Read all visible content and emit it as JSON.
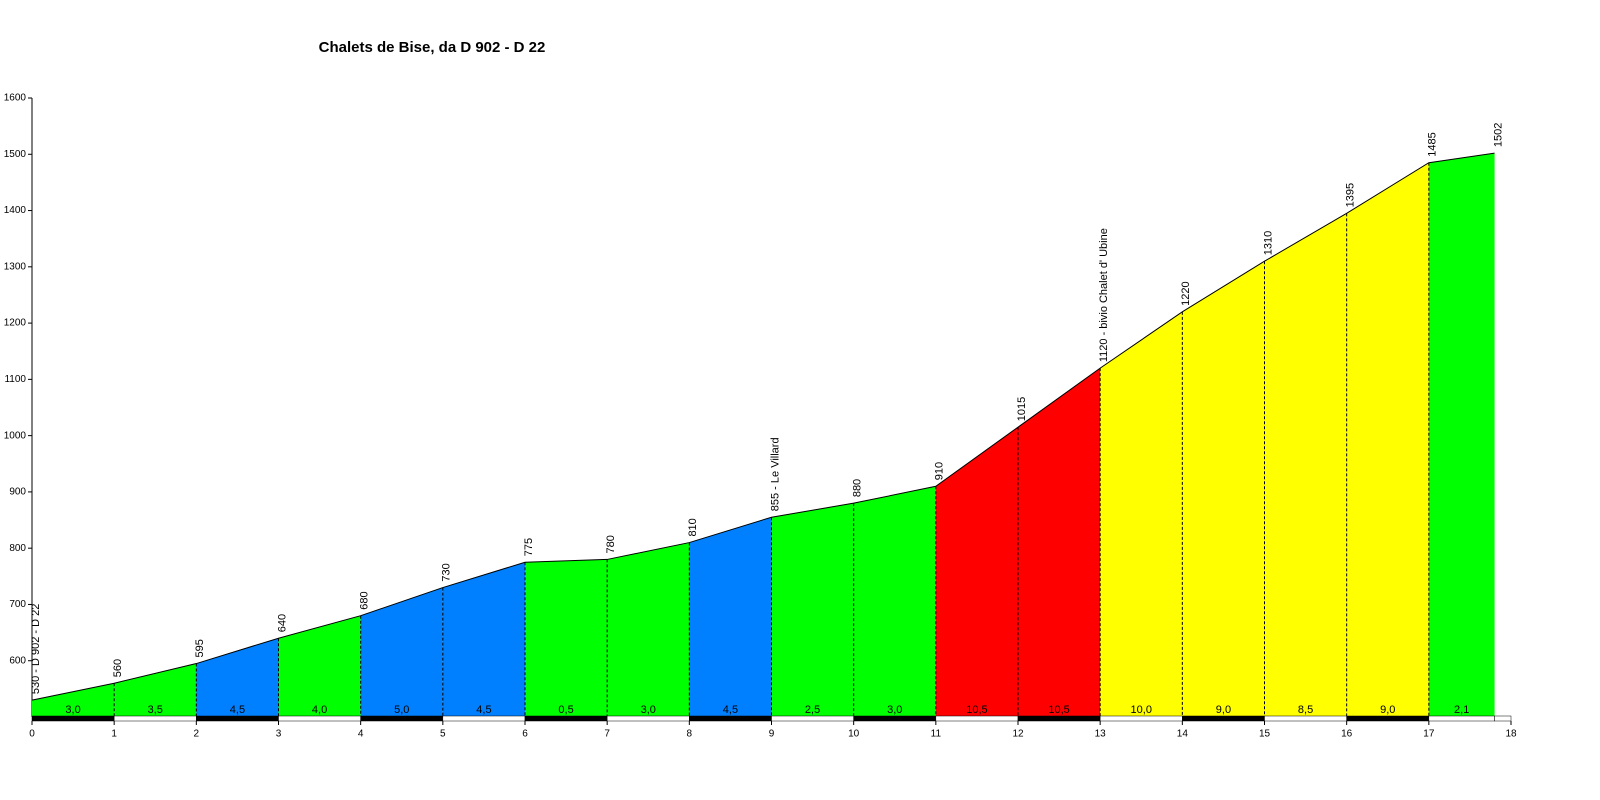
{
  "chart_data": {
    "type": "elevation-profile",
    "title": "Chalets de Bise, da D 902 - D 22",
    "x": [
      0,
      1,
      2,
      3,
      4,
      5,
      6,
      7,
      8,
      9,
      10,
      11,
      12,
      13,
      14,
      15,
      16,
      17,
      17.8
    ],
    "values": [
      530,
      560,
      595,
      640,
      680,
      730,
      775,
      780,
      810,
      855,
      880,
      910,
      1015,
      1120,
      1220,
      1310,
      1395,
      1485,
      1502
    ],
    "value_labels": [
      "530 - D 902 - D 22",
      "560",
      "595",
      "640",
      "680",
      "730",
      "775",
      "780",
      "810",
      "855 - Le Villard",
      "880",
      "910",
      "1015",
      "1120 - bivio Chalet d' Ubine",
      "1220",
      "1310",
      "1395",
      "1485",
      "1502"
    ],
    "gradients": [
      3.0,
      3.5,
      4.5,
      4.0,
      5.0,
      4.5,
      0.5,
      3.0,
      4.5,
      2.5,
      3.0,
      10.5,
      10.5,
      10.0,
      9.0,
      8.5,
      9.0,
      2.1
    ],
    "gradient_labels": [
      "3,0",
      "3,5",
      "4,5",
      "4,0",
      "5,0",
      "4,5",
      "0,5",
      "3,0",
      "4,5",
      "2,5",
      "3,0",
      "10,5",
      "10,5",
      "10,0",
      "9,0",
      "8,5",
      "9,0",
      "2,1"
    ],
    "colors": [
      "#00ff00",
      "#00ff00",
      "#0080ff",
      "#00ff00",
      "#0080ff",
      "#0080ff",
      "#00ff00",
      "#00ff00",
      "#0080ff",
      "#00ff00",
      "#00ff00",
      "#ff0000",
      "#ff0000",
      "#ffff00",
      "#ffff00",
      "#ffff00",
      "#ffff00",
      "#00ff00"
    ],
    "xlim": [
      0,
      18
    ],
    "xticks": [
      0,
      1,
      2,
      3,
      4,
      5,
      6,
      7,
      8,
      9,
      10,
      11,
      12,
      13,
      14,
      15,
      16,
      17,
      18
    ],
    "ylim": [
      500,
      1600
    ],
    "yticks": [
      600,
      700,
      800,
      900,
      1000,
      1100,
      1200,
      1300,
      1400,
      1500,
      1600
    ]
  }
}
